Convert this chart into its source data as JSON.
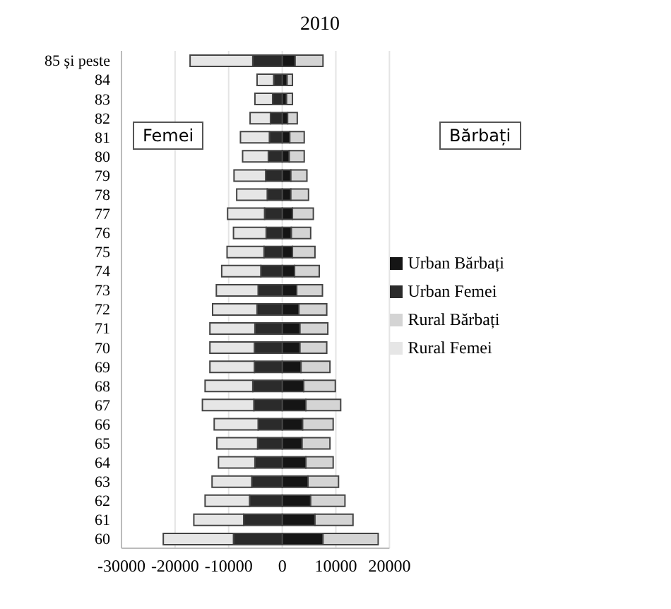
{
  "chart_data": {
    "type": "bar",
    "orientation": "horizontal",
    "stacked": true,
    "title": "2010",
    "categories": [
      "85 și peste",
      "84",
      "83",
      "82",
      "81",
      "80",
      "79",
      "78",
      "77",
      "76",
      "75",
      "74",
      "73",
      "72",
      "71",
      "70",
      "69",
      "68",
      "67",
      "66",
      "65",
      "64",
      "63",
      "62",
      "61",
      "60"
    ],
    "series": [
      {
        "name": "Urban Bărbați",
        "color": "#151515",
        "values": [
          2400,
          900,
          800,
          1000,
          1400,
          1300,
          1600,
          1600,
          1900,
          1700,
          1900,
          2300,
          2700,
          3100,
          3300,
          3300,
          3500,
          4000,
          4400,
          3800,
          3700,
          4400,
          4800,
          5300,
          6100,
          7600
        ]
      },
      {
        "name": "Urban Femei",
        "color": "#2b2b2b",
        "values": [
          -5500,
          -1600,
          -1800,
          -2200,
          -2400,
          -2600,
          -3100,
          -2800,
          -3300,
          -3000,
          -3400,
          -4000,
          -4500,
          -4700,
          -5100,
          -5200,
          -5200,
          -5500,
          -5300,
          -4500,
          -4600,
          -5100,
          -5700,
          -6100,
          -7200,
          -9100
        ]
      },
      {
        "name": "Rural Bărbați",
        "color": "#d4d4d4",
        "values": [
          5200,
          1000,
          1100,
          1800,
          2700,
          2800,
          3000,
          3300,
          3900,
          3600,
          4200,
          4600,
          4800,
          5200,
          5200,
          5000,
          5400,
          5900,
          6500,
          5700,
          5200,
          5100,
          5700,
          6400,
          7100,
          10300
        ]
      },
      {
        "name": "Rural Femei",
        "color": "#e6e6e6",
        "values": [
          -11700,
          -3100,
          -3300,
          -3800,
          -5400,
          -4800,
          -5900,
          -5700,
          -6900,
          -6100,
          -6900,
          -7300,
          -7800,
          -8300,
          -8400,
          -8300,
          -8300,
          -8900,
          -9600,
          -8200,
          -7600,
          -6800,
          -7400,
          -8300,
          -9300,
          -13100
        ]
      }
    ],
    "xlim": [
      -30000,
      20000
    ],
    "xticks": [
      -30000,
      -20000,
      -10000,
      0,
      10000,
      20000
    ],
    "grid": "x",
    "legend": "right",
    "annotations": [
      "Femei",
      "Bărbați"
    ]
  }
}
